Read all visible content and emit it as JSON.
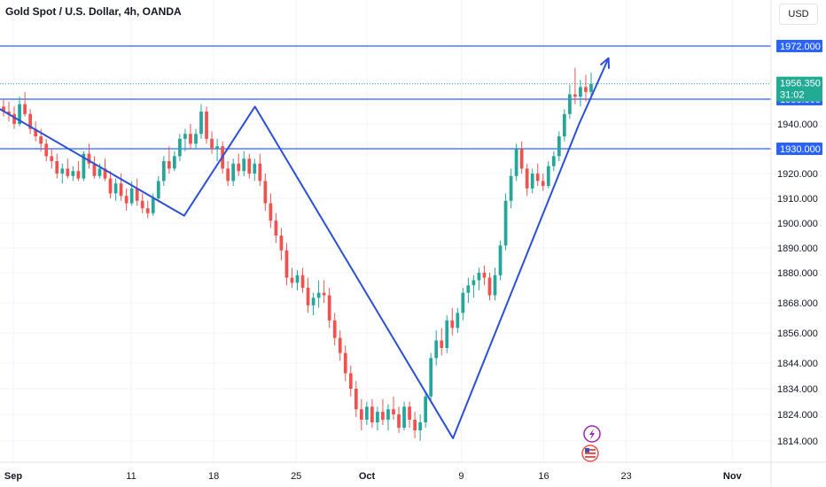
{
  "header": {
    "title": "Gold Spot / U.S. Dollar, 4h, OANDA",
    "currency": "USD"
  },
  "colors": {
    "up": "#26a69a",
    "down": "#ef5350",
    "level_line": "#2962ff",
    "pattern_line": "#2b4fd6",
    "price_tag": "#22ab94",
    "axis_text": "#131722"
  },
  "chart_data": {
    "type": "candlestick",
    "timeframe": "4h",
    "y_axis": {
      "ticks": [
        1814,
        1824,
        1834,
        1844,
        1856,
        1868,
        1880,
        1890,
        1900,
        1910,
        1920,
        1930,
        1940,
        1950,
        1972
      ],
      "tick_labels": [
        "1814.000",
        "1824.000",
        "1834.000",
        "1844.000",
        "1856.000",
        "1868.000",
        "1880.000",
        "1890.000",
        "1900.000",
        "1910.000",
        "1920.000",
        "1940.000"
      ]
    },
    "x_axis": {
      "ticks": [
        {
          "label": "Sep",
          "day": 0
        },
        {
          "label": "11",
          "day": 10
        },
        {
          "label": "18",
          "day": 17
        },
        {
          "label": "25",
          "day": 24
        },
        {
          "label": "Oct",
          "day": 30
        },
        {
          "label": "9",
          "day": 38
        },
        {
          "label": "16",
          "day": 45
        },
        {
          "label": "23",
          "day": 52
        },
        {
          "label": "Nov",
          "day": 61
        }
      ]
    },
    "horizontal_levels": [
      {
        "value": 1972.0,
        "label": "1972.000"
      },
      {
        "value": 1950.0,
        "label": "1950.000"
      },
      {
        "value": 1930.0,
        "label": "1930.000"
      }
    ],
    "current_price": {
      "value": 1956.35,
      "label": "1956.350",
      "countdown": "31:02"
    },
    "pattern_path": [
      {
        "day": -1.5,
        "price": 1947
      },
      {
        "day": 14.5,
        "price": 1903
      },
      {
        "day": 20.5,
        "price": 1947
      },
      {
        "day": 37.3,
        "price": 1815
      },
      {
        "day": 48,
        "price": 1940
      },
      {
        "day": 50.5,
        "price": 1967,
        "arrow": true
      }
    ],
    "candles": [
      [
        1947,
        1950,
        1943,
        1945
      ],
      [
        1945,
        1949,
        1941,
        1944
      ],
      [
        1944,
        1947,
        1938,
        1940
      ],
      [
        1940,
        1951,
        1939,
        1948
      ],
      [
        1948,
        1953,
        1943,
        1944
      ],
      [
        1944,
        1946,
        1936,
        1938
      ],
      [
        1938,
        1941,
        1933,
        1935
      ],
      [
        1935,
        1938,
        1929,
        1932
      ],
      [
        1932,
        1934,
        1925,
        1927
      ],
      [
        1927,
        1930,
        1922,
        1925
      ],
      [
        1925,
        1928,
        1918,
        1920
      ],
      [
        1920,
        1924,
        1916,
        1922
      ],
      [
        1922,
        1926,
        1918,
        1919
      ],
      [
        1919,
        1923,
        1917,
        1921
      ],
      [
        1921,
        1925,
        1917,
        1918
      ],
      [
        1918,
        1929,
        1917,
        1928
      ],
      [
        1928,
        1932,
        1922,
        1924
      ],
      [
        1924,
        1927,
        1918,
        1919
      ],
      [
        1919,
        1924,
        1918,
        1922
      ],
      [
        1922,
        1926,
        1917,
        1918
      ],
      [
        1918,
        1921,
        1910,
        1912
      ],
      [
        1912,
        1918,
        1909,
        1916
      ],
      [
        1916,
        1920,
        1909,
        1911
      ],
      [
        1911,
        1914,
        1905,
        1908
      ],
      [
        1908,
        1917,
        1907,
        1914
      ],
      [
        1914,
        1918,
        1907,
        1909
      ],
      [
        1909,
        1912,
        1904,
        1906
      ],
      [
        1906,
        1909,
        1902,
        1904
      ],
      [
        1904,
        1912,
        1903,
        1910
      ],
      [
        1910,
        1919,
        1909,
        1917
      ],
      [
        1917,
        1927,
        1915,
        1925
      ],
      [
        1925,
        1931,
        1920,
        1922
      ],
      [
        1922,
        1929,
        1921,
        1927
      ],
      [
        1927,
        1936,
        1925,
        1934
      ],
      [
        1934,
        1938,
        1929,
        1936
      ],
      [
        1936,
        1940,
        1930,
        1932
      ],
      [
        1932,
        1938,
        1930,
        1936
      ],
      [
        1936,
        1948,
        1934,
        1945
      ],
      [
        1945,
        1947,
        1932,
        1934
      ],
      [
        1934,
        1937,
        1928,
        1930
      ],
      [
        1930,
        1934,
        1925,
        1931
      ],
      [
        1931,
        1933,
        1920,
        1922
      ],
      [
        1922,
        1925,
        1915,
        1917
      ],
      [
        1917,
        1926,
        1915,
        1924
      ],
      [
        1924,
        1928,
        1919,
        1921
      ],
      [
        1921,
        1929,
        1919,
        1926
      ],
      [
        1926,
        1928,
        1918,
        1920
      ],
      [
        1920,
        1926,
        1917,
        1924
      ],
      [
        1924,
        1928,
        1915,
        1917
      ],
      [
        1917,
        1920,
        1905,
        1908
      ],
      [
        1908,
        1912,
        1898,
        1901
      ],
      [
        1901,
        1904,
        1892,
        1895
      ],
      [
        1895,
        1898,
        1885,
        1889
      ],
      [
        1889,
        1892,
        1875,
        1878
      ],
      [
        1878,
        1882,
        1874,
        1876
      ],
      [
        1876,
        1881,
        1873,
        1879
      ],
      [
        1879,
        1882,
        1872,
        1874
      ],
      [
        1874,
        1878,
        1864,
        1867
      ],
      [
        1867,
        1872,
        1863,
        1870
      ],
      [
        1870,
        1877,
        1866,
        1872
      ],
      [
        1872,
        1877,
        1868,
        1871
      ],
      [
        1871,
        1874,
        1858,
        1861
      ],
      [
        1861,
        1864,
        1851,
        1854
      ],
      [
        1854,
        1857,
        1845,
        1848
      ],
      [
        1848,
        1851,
        1837,
        1840
      ],
      [
        1840,
        1843,
        1831,
        1834
      ],
      [
        1834,
        1837,
        1823,
        1826
      ],
      [
        1826,
        1830,
        1818,
        1822
      ],
      [
        1822,
        1829,
        1820,
        1827
      ],
      [
        1827,
        1830,
        1819,
        1821
      ],
      [
        1821,
        1827,
        1818,
        1825
      ],
      [
        1825,
        1830,
        1820,
        1822
      ],
      [
        1822,
        1828,
        1818,
        1826
      ],
      [
        1826,
        1831,
        1822,
        1824
      ],
      [
        1824,
        1827,
        1817,
        1819
      ],
      [
        1819,
        1829,
        1818,
        1827
      ],
      [
        1827,
        1829,
        1819,
        1822
      ],
      [
        1822,
        1825,
        1815,
        1818
      ],
      [
        1818,
        1824,
        1814,
        1821
      ],
      [
        1821,
        1833,
        1819,
        1831
      ],
      [
        1831,
        1848,
        1829,
        1846
      ],
      [
        1846,
        1857,
        1843,
        1853
      ],
      [
        1853,
        1858,
        1847,
        1850
      ],
      [
        1850,
        1863,
        1848,
        1861
      ],
      [
        1861,
        1866,
        1855,
        1858
      ],
      [
        1858,
        1866,
        1856,
        1864
      ],
      [
        1864,
        1874,
        1861,
        1872
      ],
      [
        1872,
        1878,
        1868,
        1875
      ],
      [
        1875,
        1879,
        1870,
        1877
      ],
      [
        1877,
        1882,
        1873,
        1880
      ],
      [
        1880,
        1883,
        1875,
        1878
      ],
      [
        1878,
        1880,
        1869,
        1871
      ],
      [
        1871,
        1882,
        1869,
        1879
      ],
      [
        1879,
        1893,
        1877,
        1891
      ],
      [
        1891,
        1912,
        1889,
        1909
      ],
      [
        1909,
        1922,
        1906,
        1919
      ],
      [
        1919,
        1932,
        1917,
        1930
      ],
      [
        1930,
        1933,
        1920,
        1922
      ],
      [
        1922,
        1924,
        1911,
        1914
      ],
      [
        1914,
        1922,
        1912,
        1920
      ],
      [
        1920,
        1924,
        1915,
        1917
      ],
      [
        1917,
        1920,
        1913,
        1915
      ],
      [
        1915,
        1925,
        1914,
        1923
      ],
      [
        1923,
        1929,
        1921,
        1927
      ],
      [
        1927,
        1937,
        1925,
        1935
      ],
      [
        1935,
        1946,
        1933,
        1944
      ],
      [
        1944,
        1956,
        1942,
        1952
      ],
      [
        1952,
        1963,
        1948,
        1951
      ],
      [
        1951,
        1958,
        1947,
        1955
      ],
      [
        1955,
        1960,
        1949,
        1953
      ],
      [
        1953,
        1961,
        1950,
        1956.35
      ]
    ]
  }
}
